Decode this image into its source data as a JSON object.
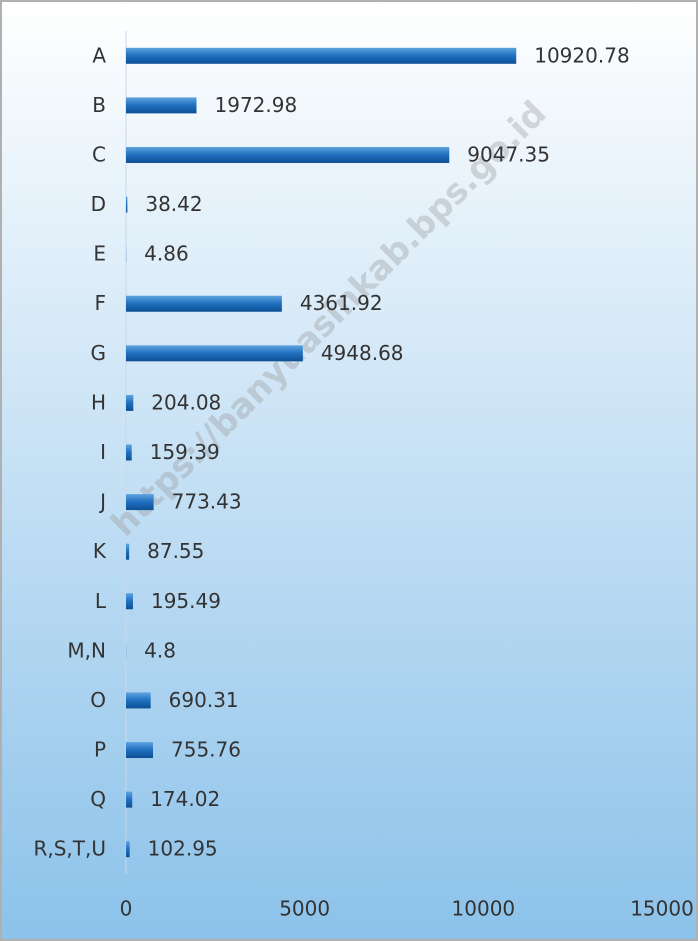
{
  "chart_data": {
    "type": "bar",
    "orientation": "horizontal",
    "categories": [
      "A",
      "B",
      "C",
      "D",
      "E",
      "F",
      "G",
      "H",
      "I",
      "J",
      "K",
      "L",
      "M,N",
      "O",
      "P",
      "Q",
      "R,S,T,U"
    ],
    "values": [
      10920.78,
      1972.98,
      9047.35,
      38.42,
      4.86,
      4361.92,
      4948.68,
      204.08,
      159.39,
      773.43,
      87.55,
      195.49,
      4.8,
      690.31,
      755.76,
      174.02,
      102.95
    ],
    "color": "#1f6fbf",
    "xlim": [
      0,
      15000
    ],
    "xticks": [
      0,
      5000,
      10000,
      15000
    ],
    "grid": false,
    "watermark": "https://banyuasinkab.bps.go.id"
  }
}
